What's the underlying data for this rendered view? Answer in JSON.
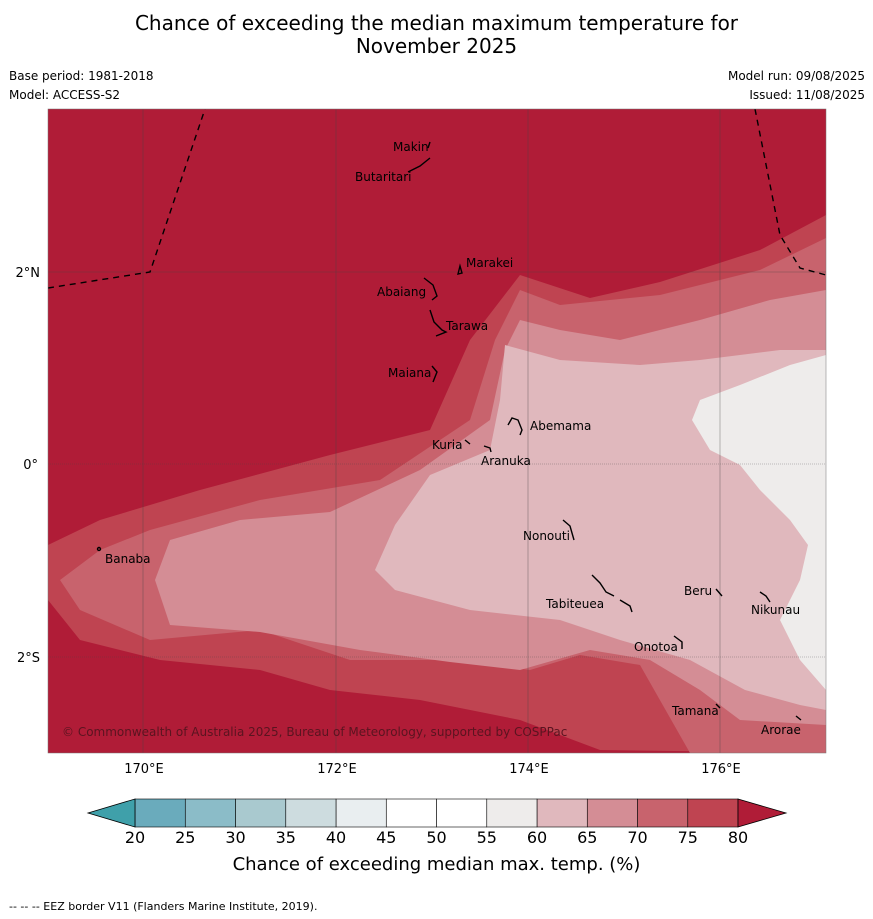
{
  "header": {
    "title_line1": "Chance of exceeding the median maximum temperature for",
    "title_line2": "November 2025",
    "base_period": "Base period: 1981-2018",
    "model": "Model: ACCESS-S2",
    "model_run": "Model run: 09/08/2025",
    "issued": "Issued: 11/08/2025"
  },
  "map": {
    "lon_labels": [
      "170°E",
      "172°E",
      "174°E",
      "176°E"
    ],
    "lat_labels": [
      "2°N",
      "0°",
      "2°S"
    ],
    "places": [
      "Makin",
      "Butaritari",
      "Marakei",
      "Abaiang",
      "Tarawa",
      "Maiana",
      "Abemama",
      "Kuria",
      "Aranuka",
      "Nonouti",
      "Banaba",
      "Beru",
      "Nikunau",
      "Tabiteuea",
      "Onotoa",
      "Tamana",
      "Arorae"
    ],
    "copyright": "© Commonwealth of Australia 2025, Bureau of Meteorology, supported by COSPPac"
  },
  "colorbar": {
    "ticks": [
      "20",
      "25",
      "30",
      "35",
      "40",
      "45",
      "50",
      "55",
      "60",
      "65",
      "70",
      "75",
      "80"
    ],
    "colors": [
      "#6aabbc",
      "#8bbcc8",
      "#a9c9cf",
      "#cddcdf",
      "#e9eef0",
      "#ffffff",
      "#ffffff",
      "#eeeceb",
      "#e0b8bd",
      "#d48d95",
      "#c8636d",
      "#bf4451"
    ],
    "under_color": "#3fa0aa",
    "over_color": "#b01c37",
    "label": "Chance of exceeding median max. temp. (%)"
  },
  "footer": {
    "eez_note": "--  --  -- EEZ border V11 (Flanders Marine Institute, 2019)."
  }
}
